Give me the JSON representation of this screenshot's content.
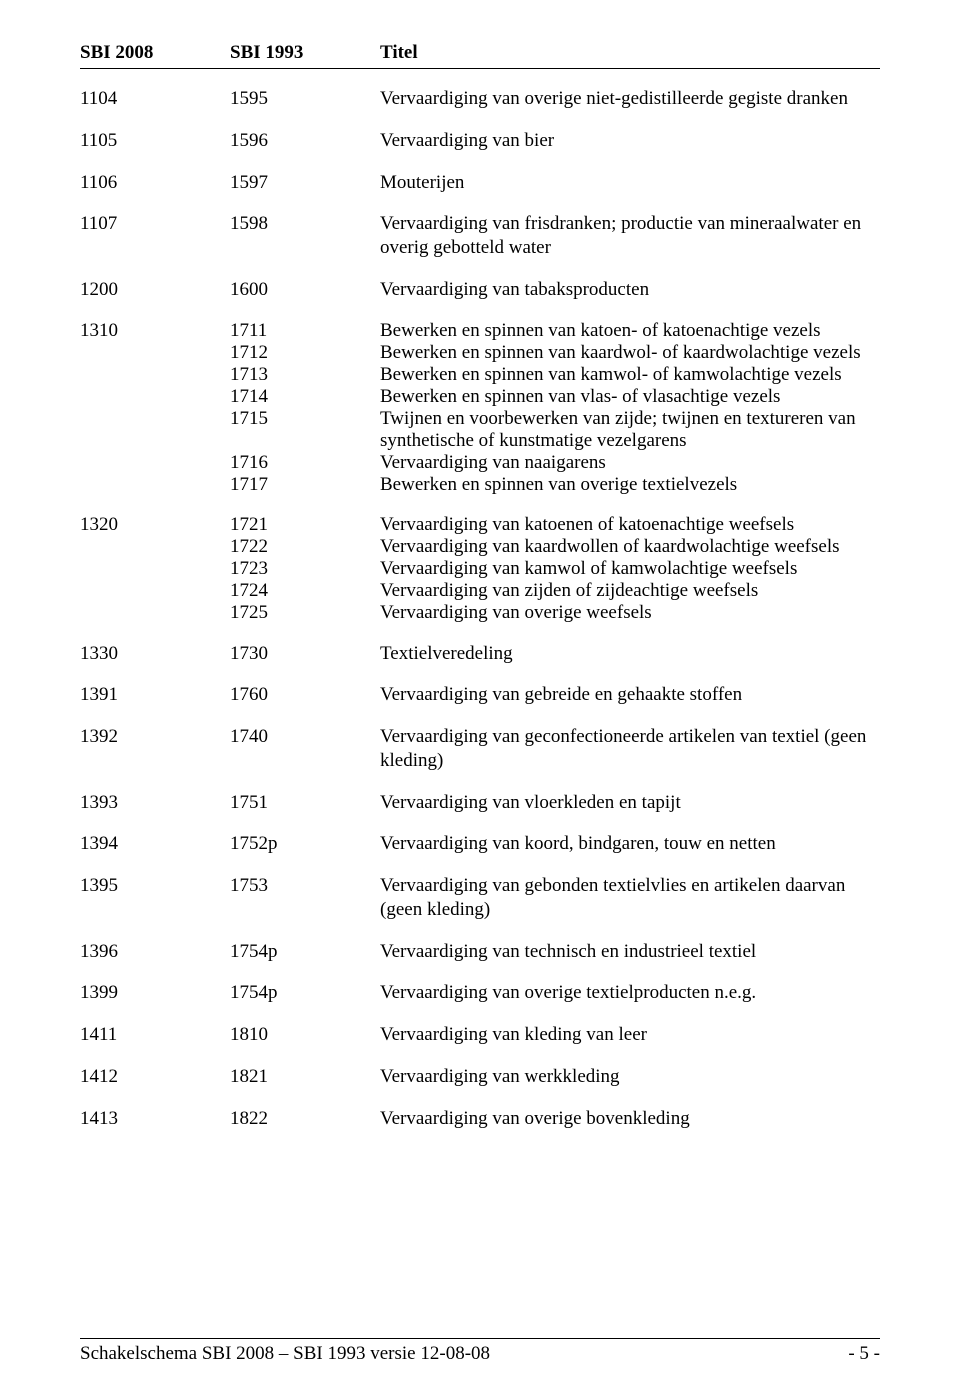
{
  "header": {
    "col1": "SBI 2008",
    "col2": "SBI 1993",
    "col3": "Titel"
  },
  "rows": [
    {
      "c1": "1104",
      "c2": "1595",
      "c3": "Vervaardiging van overige niet-gedistilleerde gegiste dranken"
    },
    {
      "c1": "1105",
      "c2": "1596",
      "c3": "Vervaardiging van bier"
    },
    {
      "c1": "1106",
      "c2": "1597",
      "c3": "Mouterijen"
    },
    {
      "c1": "1107",
      "c2": "1598",
      "c3": "Vervaardiging van frisdranken; productie van mineraalwater en overig gebotteld water"
    },
    {
      "c1": "1200",
      "c2": "1600",
      "c3": "Vervaardiging van tabaksproducten"
    }
  ],
  "group1": {
    "c1": "1310",
    "items": [
      {
        "c2": "1711",
        "c3": "Bewerken en spinnen van katoen- of katoenachtige vezels"
      },
      {
        "c2": "1712",
        "c3": "Bewerken en spinnen van kaardwol- of kaardwolachtige vezels"
      },
      {
        "c2": "1713",
        "c3": "Bewerken en spinnen van kamwol- of kamwolachtige vezels"
      },
      {
        "c2": "1714",
        "c3": "Bewerken en spinnen van vlas- of vlasachtige vezels"
      },
      {
        "c2": "1715",
        "c3": "Twijnen en voorbewerken van zijde; twijnen en textureren van synthetische of kunstmatige vezelgarens"
      },
      {
        "c2": "1716",
        "c3": "Vervaardiging van naaigarens"
      },
      {
        "c2": "1717",
        "c3": "Bewerken en spinnen van overige textielvezels"
      }
    ]
  },
  "group2": {
    "c1": "1320",
    "items": [
      {
        "c2": "1721",
        "c3": "Vervaardiging van katoenen of katoenachtige weefsels"
      },
      {
        "c2": "1722",
        "c3": "Vervaardiging van kaardwollen of kaardwolachtige weefsels"
      },
      {
        "c2": "1723",
        "c3": "Vervaardiging van kamwol of kamwolachtige weefsels"
      },
      {
        "c2": "1724",
        "c3": "Vervaardiging van zijden of zijdeachtige weefsels"
      },
      {
        "c2": "1725",
        "c3": "Vervaardiging van overige weefsels"
      }
    ]
  },
  "rows2": [
    {
      "c1": "1330",
      "c2": "1730",
      "c3": "Textielveredeling"
    },
    {
      "c1": "1391",
      "c2": "1760",
      "c3": "Vervaardiging van gebreide en gehaakte stoffen"
    },
    {
      "c1": "1392",
      "c2": "1740",
      "c3": "Vervaardiging van geconfectioneerde artikelen van textiel (geen kleding)"
    },
    {
      "c1": "1393",
      "c2": "1751",
      "c3": "Vervaardiging van vloerkleden en tapijt"
    },
    {
      "c1": "1394",
      "c2": "1752p",
      "c3": "Vervaardiging van koord, bindgaren, touw en netten"
    },
    {
      "c1": "1395",
      "c2": "1753",
      "c3": "Vervaardiging van gebonden textielvlies en artikelen daarvan (geen kleding)"
    },
    {
      "c1": "1396",
      "c2": "1754p",
      "c3": "Vervaardiging van technisch en industrieel textiel"
    },
    {
      "c1": "1399",
      "c2": "1754p",
      "c3": "Vervaardiging van overige textielproducten n.e.g."
    },
    {
      "c1": "1411",
      "c2": "1810",
      "c3": "Vervaardiging van kleding van leer"
    },
    {
      "c1": "1412",
      "c2": "1821",
      "c3": "Vervaardiging van werkkleding"
    },
    {
      "c1": "1413",
      "c2": "1822",
      "c3": "Vervaardiging van overige bovenkleding"
    }
  ],
  "footer": {
    "left": "Schakelschema SBI 2008 – SBI 1993  versie 12-08-08",
    "right": "- 5 -"
  }
}
